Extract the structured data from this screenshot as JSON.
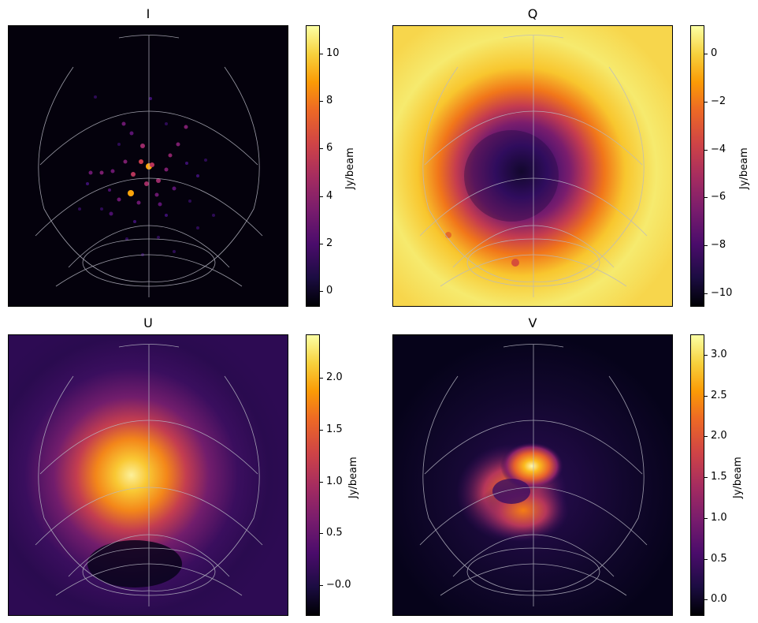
{
  "chart_data": [
    {
      "type": "heatmap",
      "title": "I",
      "colormap": "inferno",
      "colorbar_label": "Jy/beam",
      "vmin": -0.6,
      "vmax": 11.2,
      "ticks": [
        0,
        2,
        4,
        6,
        8,
        10
      ],
      "tick_labels": [
        "0",
        "2",
        "4",
        "6",
        "8",
        "10"
      ],
      "description_values": "compact point sources; peak ≈ 11 Jy/beam near centre"
    },
    {
      "type": "heatmap",
      "title": "Q",
      "colormap": "inferno",
      "colorbar_label": "Jy/beam",
      "vmin": -10.5,
      "vmax": 1.2,
      "ticks": [
        0,
        -2,
        -4,
        -6,
        -8,
        -10
      ],
      "tick_labels": [
        "0",
        "−2",
        "−4",
        "−6",
        "−8",
        "−10"
      ],
      "description_values": "broad negative region ≈ −10 Jy/beam at centre, ≈ 0 at edges"
    },
    {
      "type": "heatmap",
      "title": "U",
      "colormap": "inferno",
      "colorbar_label": "Jy/beam",
      "vmin": -0.28,
      "vmax": 2.42,
      "ticks": [
        -0.0,
        0.5,
        1.0,
        1.5,
        2.0
      ],
      "tick_labels": [
        "−0.0",
        "0.5",
        "1.0",
        "1.5",
        "2.0"
      ],
      "description_values": "extended emission peaking ≈ 2.3 Jy/beam left of centre"
    },
    {
      "type": "heatmap",
      "title": "V",
      "colormap": "inferno",
      "colorbar_label": "Jy/beam",
      "vmin": -0.18,
      "vmax": 3.25,
      "ticks": [
        0.0,
        0.5,
        1.0,
        1.5,
        2.0,
        2.5,
        3.0
      ],
      "tick_labels": [
        "0.0",
        "0.5",
        "1.0",
        "1.5",
        "2.0",
        "2.5",
        "3.0"
      ],
      "description_values": "ring-like emission peaking ≈ 3.2 Jy/beam at centre"
    }
  ]
}
